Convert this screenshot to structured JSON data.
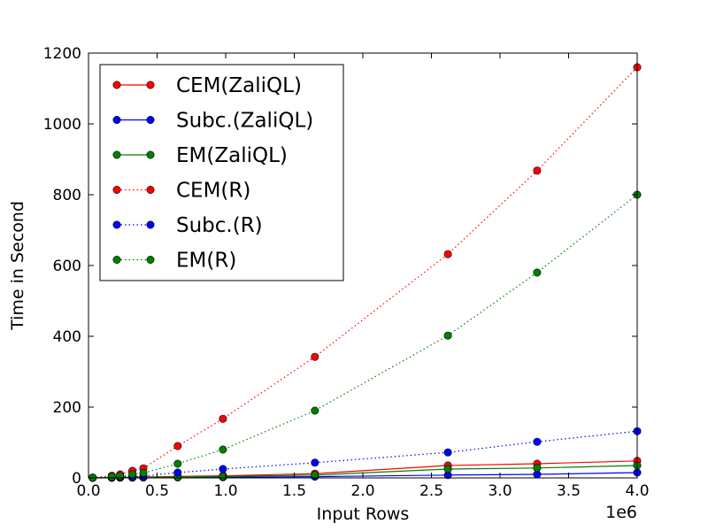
{
  "chart_data": {
    "type": "line",
    "title": "",
    "xlabel": "Input Rows",
    "ylabel": "Time in Second",
    "x_offset_label": "1e6",
    "xlim": [
      0,
      4000000
    ],
    "ylim": [
      0,
      1200
    ],
    "grid": false,
    "legend_placement": "top-left",
    "x_ticks": [
      0,
      500000,
      1000000,
      1500000,
      2000000,
      2500000,
      3000000,
      3500000,
      4000000
    ],
    "x_tick_labels": [
      "0.0",
      "0.5",
      "1.0",
      "1.5",
      "2.0",
      "2.5",
      "3.0",
      "3.5",
      "4.0"
    ],
    "y_ticks": [
      0,
      200,
      400,
      600,
      800,
      1000,
      1200
    ],
    "y_tick_labels": [
      "0",
      "200",
      "400",
      "600",
      "800",
      "1000",
      "1200"
    ],
    "x": [
      30000,
      170000,
      230000,
      320000,
      400000,
      650000,
      980000,
      1650000,
      2620000,
      3270000,
      4000000
    ],
    "series": [
      {
        "name": "CEM(ZaliQL)",
        "color": "#ff0000",
        "style": "solid",
        "values": [
          0.3,
          1,
          1.5,
          2,
          2.5,
          4,
          6,
          12,
          35,
          40,
          48
        ]
      },
      {
        "name": "Subc.(ZaliQL)",
        "color": "#0000ff",
        "style": "solid",
        "values": [
          0.1,
          0.3,
          0.5,
          0.7,
          0.9,
          1.2,
          2,
          3.5,
          8,
          10,
          15
        ]
      },
      {
        "name": "EM(ZaliQL)",
        "color": "#008000",
        "style": "solid",
        "values": [
          0.2,
          0.6,
          1,
          1.4,
          1.8,
          2.5,
          4,
          8,
          25,
          28,
          35
        ]
      },
      {
        "name": "CEM(R)",
        "color": "#ff0000",
        "style": "dotted",
        "values": [
          1,
          6,
          10,
          20,
          27,
          90,
          167,
          342,
          632,
          868,
          1160
        ]
      },
      {
        "name": "Subc.(R)",
        "color": "#0000ff",
        "style": "dotted",
        "values": [
          0.5,
          2,
          3,
          4,
          5,
          15,
          25,
          43,
          72,
          102,
          132
        ]
      },
      {
        "name": "EM(R)",
        "color": "#008000",
        "style": "dotted",
        "values": [
          0.5,
          3,
          5,
          10,
          14,
          40,
          80,
          190,
          402,
          580,
          800
        ]
      }
    ]
  }
}
